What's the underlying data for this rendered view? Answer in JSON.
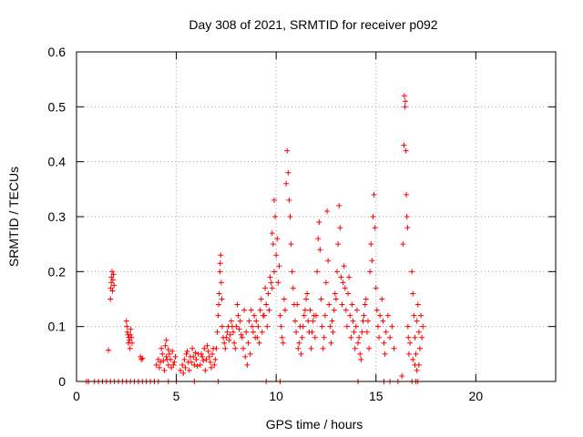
{
  "chart_data": {
    "type": "scatter",
    "title": "Day 308 of 2021, SRMTID for receiver p092",
    "xlabel": "GPS time / hours",
    "ylabel": "SRMTID / TECUs",
    "xlim": [
      0,
      24
    ],
    "ylim": [
      0,
      0.6
    ],
    "xticks": [
      0,
      5,
      10,
      15,
      20
    ],
    "xtick_labels": [
      "0",
      "5",
      "10",
      "15",
      "20"
    ],
    "yticks": [
      0,
      0.1,
      0.2,
      0.3,
      0.4,
      0.5,
      0.6
    ],
    "ytick_labels": [
      "0",
      "0.1",
      "0.2",
      "0.3",
      "0.4",
      "0.5",
      "0.6"
    ],
    "grid": true,
    "marker": "+",
    "color": "#ff0000",
    "series": [
      {
        "name": "SRMTID",
        "points": [
          [
            0.5,
            0
          ],
          [
            0.6,
            0
          ],
          [
            0.9,
            0
          ],
          [
            1.1,
            0
          ],
          [
            1.3,
            0
          ],
          [
            1.5,
            0
          ],
          [
            1.7,
            0
          ],
          [
            1.9,
            0
          ],
          [
            2.1,
            0
          ],
          [
            2.3,
            0
          ],
          [
            2.5,
            0
          ],
          [
            2.7,
            0
          ],
          [
            2.9,
            0
          ],
          [
            3.1,
            0
          ],
          [
            3.3,
            0
          ],
          [
            3.5,
            0
          ],
          [
            3.7,
            0
          ],
          [
            3.9,
            0
          ],
          [
            4.1,
            0
          ],
          [
            4.6,
            0
          ],
          [
            5.0,
            0
          ],
          [
            5.9,
            0
          ],
          [
            7.1,
            0
          ],
          [
            9.5,
            0
          ],
          [
            10.2,
            0
          ],
          [
            14.1,
            0
          ],
          [
            15.4,
            0
          ],
          [
            15.7,
            0
          ],
          [
            16.1,
            0
          ],
          [
            16.8,
            0
          ],
          [
            17.0,
            0
          ],
          [
            17.1,
            0
          ],
          [
            1.6,
            0.057
          ],
          [
            1.7,
            0.15
          ],
          [
            1.72,
            0.17
          ],
          [
            1.74,
            0.18
          ],
          [
            1.75,
            0.19
          ],
          [
            1.78,
            0.2
          ],
          [
            1.8,
            0.165
          ],
          [
            1.82,
            0.185
          ],
          [
            1.85,
            0.195
          ],
          [
            1.88,
            0.175
          ],
          [
            2.5,
            0.11
          ],
          [
            2.52,
            0.1
          ],
          [
            2.55,
            0.09
          ],
          [
            2.58,
            0.085
          ],
          [
            2.6,
            0.07
          ],
          [
            2.62,
            0.08
          ],
          [
            2.65,
            0.075
          ],
          [
            2.68,
            0.06
          ],
          [
            2.7,
            0.085
          ],
          [
            2.72,
            0.095
          ],
          [
            2.75,
            0.08
          ],
          [
            2.78,
            0.07
          ],
          [
            3.2,
            0.045
          ],
          [
            3.25,
            0.04
          ],
          [
            3.3,
            0.042
          ],
          [
            4.0,
            0.03
          ],
          [
            4.1,
            0.04
          ],
          [
            4.2,
            0.035
          ],
          [
            4.3,
            0.05
          ],
          [
            4.4,
            0.02
          ],
          [
            4.5,
            0.045
          ],
          [
            4.6,
            0.03
          ],
          [
            4.7,
            0.04
          ],
          [
            4.8,
            0.055
          ],
          [
            4.9,
            0.035
          ],
          [
            4.25,
            0.06
          ],
          [
            4.45,
            0.065
          ],
          [
            4.55,
            0.04
          ],
          [
            4.65,
            0.05
          ],
          [
            4.75,
            0.025
          ],
          [
            4.85,
            0.03
          ],
          [
            4.95,
            0.045
          ],
          [
            4.15,
            0.025
          ],
          [
            4.35,
            0.038
          ],
          [
            4.5,
            0.075
          ],
          [
            4.6,
            0.058
          ],
          [
            5.2,
            0.02
          ],
          [
            5.3,
            0.03
          ],
          [
            5.4,
            0.04
          ],
          [
            5.5,
            0.05
          ],
          [
            5.6,
            0.035
          ],
          [
            5.7,
            0.045
          ],
          [
            5.8,
            0.06
          ],
          [
            5.9,
            0.03
          ],
          [
            6.0,
            0.04
          ],
          [
            6.1,
            0.05
          ],
          [
            5.35,
            0.015
          ],
          [
            5.45,
            0.025
          ],
          [
            5.55,
            0.055
          ],
          [
            5.65,
            0.02
          ],
          [
            5.75,
            0.035
          ],
          [
            5.85,
            0.045
          ],
          [
            5.95,
            0.052
          ],
          [
            6.05,
            0.028
          ],
          [
            6.2,
            0.03
          ],
          [
            6.3,
            0.045
          ],
          [
            6.4,
            0.06
          ],
          [
            6.5,
            0.04
          ],
          [
            6.6,
            0.055
          ],
          [
            6.7,
            0.035
          ],
          [
            6.8,
            0.05
          ],
          [
            6.9,
            0.03
          ],
          [
            6.25,
            0.05
          ],
          [
            6.35,
            0.038
          ],
          [
            6.45,
            0.02
          ],
          [
            6.55,
            0.065
          ],
          [
            6.65,
            0.045
          ],
          [
            6.75,
            0.025
          ],
          [
            6.85,
            0.06
          ],
          [
            6.95,
            0.04
          ],
          [
            7.0,
            0.06
          ],
          [
            7.05,
            0.09
          ],
          [
            7.1,
            0.12
          ],
          [
            7.12,
            0.14
          ],
          [
            7.15,
            0.16
          ],
          [
            7.18,
            0.2
          ],
          [
            7.2,
            0.215
          ],
          [
            7.22,
            0.23
          ],
          [
            7.25,
            0.18
          ],
          [
            7.28,
            0.15
          ],
          [
            7.3,
            0.1
          ],
          [
            7.35,
            0.08
          ],
          [
            7.4,
            0.07
          ],
          [
            7.45,
            0.06
          ],
          [
            7.5,
            0.08
          ],
          [
            7.55,
            0.09
          ],
          [
            7.6,
            0.1
          ],
          [
            7.65,
            0.075
          ],
          [
            7.7,
            0.085
          ],
          [
            7.75,
            0.11
          ],
          [
            7.8,
            0.1
          ],
          [
            7.85,
            0.09
          ],
          [
            7.9,
            0.07
          ],
          [
            7.95,
            0.06
          ],
          [
            8.0,
            0.1
          ],
          [
            8.1,
            0.12
          ],
          [
            8.2,
            0.11
          ],
          [
            8.3,
            0.08
          ],
          [
            8.4,
            0.13
          ],
          [
            8.5,
            0.09
          ],
          [
            8.6,
            0.07
          ],
          [
            8.7,
            0.05
          ],
          [
            8.8,
            0.1
          ],
          [
            8.9,
            0.12
          ],
          [
            8.05,
            0.14
          ],
          [
            8.15,
            0.095
          ],
          [
            8.25,
            0.085
          ],
          [
            8.35,
            0.06
          ],
          [
            8.45,
            0.045
          ],
          [
            8.55,
            0.03
          ],
          [
            8.65,
            0.11
          ],
          [
            8.75,
            0.13
          ],
          [
            8.85,
            0.09
          ],
          [
            8.95,
            0.08
          ],
          [
            9.0,
            0.11
          ],
          [
            9.1,
            0.1
          ],
          [
            9.2,
            0.13
          ],
          [
            9.3,
            0.09
          ],
          [
            9.4,
            0.12
          ],
          [
            9.5,
            0.14
          ],
          [
            9.6,
            0.16
          ],
          [
            9.7,
            0.19
          ],
          [
            9.8,
            0.17
          ],
          [
            9.9,
            0.2
          ],
          [
            9.05,
            0.08
          ],
          [
            9.15,
            0.07
          ],
          [
            9.25,
            0.15
          ],
          [
            9.35,
            0.12
          ],
          [
            9.45,
            0.17
          ],
          [
            9.55,
            0.1
          ],
          [
            9.65,
            0.13
          ],
          [
            9.75,
            0.18
          ],
          [
            9.85,
            0.25
          ],
          [
            9.95,
            0.3
          ],
          [
            9.9,
            0.33
          ],
          [
            9.8,
            0.27
          ],
          [
            10.0,
            0.23
          ],
          [
            10.1,
            0.18
          ],
          [
            10.2,
            0.12
          ],
          [
            10.3,
            0.08
          ],
          [
            10.4,
            0.15
          ],
          [
            10.5,
            0.36
          ],
          [
            10.55,
            0.42
          ],
          [
            10.6,
            0.38
          ],
          [
            10.65,
            0.33
          ],
          [
            10.7,
            0.3
          ],
          [
            10.75,
            0.25
          ],
          [
            10.8,
            0.2
          ],
          [
            10.85,
            0.17
          ],
          [
            10.9,
            0.14
          ],
          [
            10.95,
            0.11
          ],
          [
            10.05,
            0.26
          ],
          [
            10.15,
            0.21
          ],
          [
            10.25,
            0.1
          ],
          [
            10.35,
            0.07
          ],
          [
            10.45,
            0.13
          ],
          [
            11.0,
            0.09
          ],
          [
            11.1,
            0.06
          ],
          [
            11.2,
            0.1
          ],
          [
            11.3,
            0.08
          ],
          [
            11.4,
            0.12
          ],
          [
            11.5,
            0.15
          ],
          [
            11.6,
            0.11
          ],
          [
            11.7,
            0.13
          ],
          [
            11.8,
            0.09
          ],
          [
            11.9,
            0.12
          ],
          [
            11.05,
            0.14
          ],
          [
            11.15,
            0.07
          ],
          [
            11.25,
            0.05
          ],
          [
            11.35,
            0.1
          ],
          [
            11.45,
            0.13
          ],
          [
            11.55,
            0.16
          ],
          [
            11.65,
            0.09
          ],
          [
            11.75,
            0.06
          ],
          [
            11.85,
            0.11
          ],
          [
            11.95,
            0.08
          ],
          [
            12.0,
            0.12
          ],
          [
            12.05,
            0.2
          ],
          [
            12.1,
            0.26
          ],
          [
            12.15,
            0.29
          ],
          [
            12.2,
            0.24
          ],
          [
            12.25,
            0.15
          ],
          [
            12.3,
            0.1
          ],
          [
            12.35,
            0.06
          ],
          [
            12.4,
            0.08
          ],
          [
            12.45,
            0.12
          ],
          [
            12.5,
            0.18
          ],
          [
            12.55,
            0.31
          ],
          [
            12.6,
            0.22
          ],
          [
            12.65,
            0.14
          ],
          [
            12.7,
            0.1
          ],
          [
            12.75,
            0.07
          ],
          [
            12.8,
            0.11
          ],
          [
            12.85,
            0.09
          ],
          [
            12.9,
            0.13
          ],
          [
            12.95,
            0.16
          ],
          [
            13.0,
            0.15
          ],
          [
            13.05,
            0.2
          ],
          [
            13.1,
            0.25
          ],
          [
            13.15,
            0.32
          ],
          [
            13.2,
            0.28
          ],
          [
            13.25,
            0.19
          ],
          [
            13.3,
            0.14
          ],
          [
            13.35,
            0.18
          ],
          [
            13.4,
            0.21
          ],
          [
            13.45,
            0.17
          ],
          [
            13.5,
            0.13
          ],
          [
            13.55,
            0.1
          ],
          [
            13.6,
            0.16
          ],
          [
            13.65,
            0.19
          ],
          [
            13.7,
            0.12
          ],
          [
            13.75,
            0.08
          ],
          [
            13.8,
            0.14
          ],
          [
            13.85,
            0.11
          ],
          [
            13.9,
            0.09
          ],
          [
            13.95,
            0.06
          ],
          [
            14.0,
            0.1
          ],
          [
            14.1,
            0.07
          ],
          [
            14.2,
            0.05
          ],
          [
            14.3,
            0.09
          ],
          [
            14.4,
            0.12
          ],
          [
            14.5,
            0.15
          ],
          [
            14.6,
            0.11
          ],
          [
            14.7,
            0.2
          ],
          [
            14.75,
            0.25
          ],
          [
            14.8,
            0.22
          ],
          [
            14.85,
            0.3
          ],
          [
            14.9,
            0.34
          ],
          [
            14.95,
            0.28
          ],
          [
            14.05,
            0.13
          ],
          [
            14.15,
            0.08
          ],
          [
            14.25,
            0.04
          ],
          [
            14.35,
            0.11
          ],
          [
            14.45,
            0.14
          ],
          [
            14.55,
            0.09
          ],
          [
            14.65,
            0.06
          ],
          [
            15.0,
            0.17
          ],
          [
            15.05,
            0.13
          ],
          [
            15.1,
            0.1
          ],
          [
            15.15,
            0.08
          ],
          [
            15.2,
            0.12
          ],
          [
            15.3,
            0.15
          ],
          [
            15.35,
            0.11
          ],
          [
            15.4,
            0.07
          ],
          [
            15.45,
            0.05
          ],
          [
            15.5,
            0.09
          ],
          [
            15.6,
            0.12
          ],
          [
            15.7,
            0.08
          ],
          [
            15.8,
            0.1
          ],
          [
            15.9,
            0.06
          ],
          [
            16.3,
            0.01
          ],
          [
            16.35,
            0.25
          ],
          [
            16.4,
            0.43
          ],
          [
            16.42,
            0.52
          ],
          [
            16.45,
            0.5
          ],
          [
            16.47,
            0.51
          ],
          [
            16.5,
            0.42
          ],
          [
            16.52,
            0.34
          ],
          [
            16.55,
            0.3
          ],
          [
            16.58,
            0.28
          ],
          [
            16.6,
            0.1
          ],
          [
            16.62,
            0.08
          ],
          [
            16.65,
            0.05
          ],
          [
            16.7,
            0.07
          ],
          [
            16.8,
            0.2
          ],
          [
            16.85,
            0.16
          ],
          [
            16.9,
            0.12
          ],
          [
            16.95,
            0.08
          ],
          [
            17.0,
            0.05
          ],
          [
            17.05,
            0.11
          ],
          [
            17.1,
            0.14
          ],
          [
            17.15,
            0.09
          ],
          [
            17.2,
            0.06
          ],
          [
            17.25,
            0.12
          ],
          [
            17.3,
            0.08
          ],
          [
            17.35,
            0.1
          ],
          [
            16.85,
            0.04
          ],
          [
            16.95,
            0.03
          ],
          [
            17.05,
            0.02
          ],
          [
            17.15,
            0.03
          ]
        ]
      }
    ]
  }
}
